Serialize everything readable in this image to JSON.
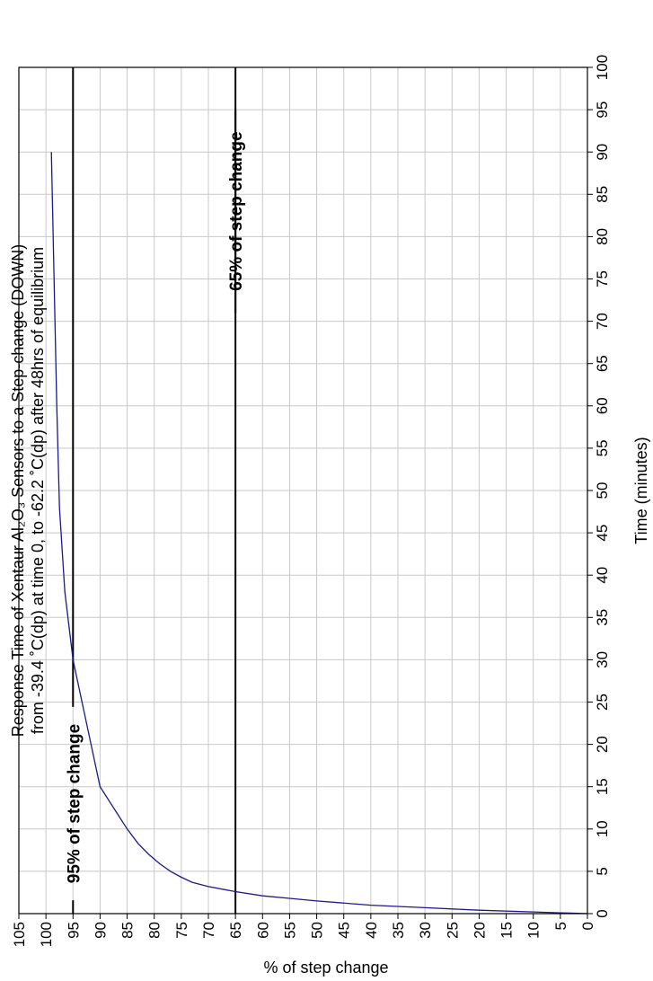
{
  "chart_data": {
    "type": "line",
    "orientation": "rotated-90-ccw",
    "title_line1": "Response Time of Xentaur Al₂O₃ Sensors to a Step-change (DOWN)",
    "title_line2": "from -39.4 ˚C(dp) at time 0, to -62.2 ˚C(dp) after 48hrs of equilibrium",
    "xlabel": "% of step change",
    "ylabel": "Time (minutes)",
    "xlim": [
      0,
      105
    ],
    "ylim": [
      0,
      100
    ],
    "x_ticks": [
      "0",
      "5",
      "10",
      "15",
      "20",
      "25",
      "30",
      "35",
      "40",
      "45",
      "50",
      "55",
      "60",
      "65",
      "70",
      "75",
      "80",
      "85",
      "90",
      "95",
      "100",
      "105"
    ],
    "y_ticks": [
      "0",
      "5",
      "10",
      "15",
      "20",
      "25",
      "30",
      "35",
      "40",
      "45",
      "50",
      "55",
      "60",
      "65",
      "70",
      "75",
      "80",
      "85",
      "90",
      "95",
      "100"
    ],
    "grid": true,
    "line_color": "#1a1a8c",
    "series": [
      {
        "x": [
          0,
          5,
          10,
          20,
          30,
          40,
          50,
          55,
          60,
          65,
          70,
          73,
          75,
          77,
          79,
          81,
          83,
          85,
          87,
          90,
          93,
          95,
          96.5,
          97.5,
          98,
          98.5,
          99
        ],
        "y": [
          0,
          0.1,
          0.2,
          0.4,
          0.7,
          1.0,
          1.5,
          1.8,
          2.1,
          2.6,
          3.2,
          3.7,
          4.3,
          5.0,
          5.9,
          7.0,
          8.3,
          10.0,
          12.0,
          15.0,
          24.0,
          30.0,
          38.0,
          48.0,
          60.0,
          75.0,
          90.0
        ]
      }
    ],
    "reference_lines": [
      {
        "x": 65,
        "label": "65% of step change"
      },
      {
        "x": 95,
        "label": "95% of step change"
      }
    ]
  }
}
